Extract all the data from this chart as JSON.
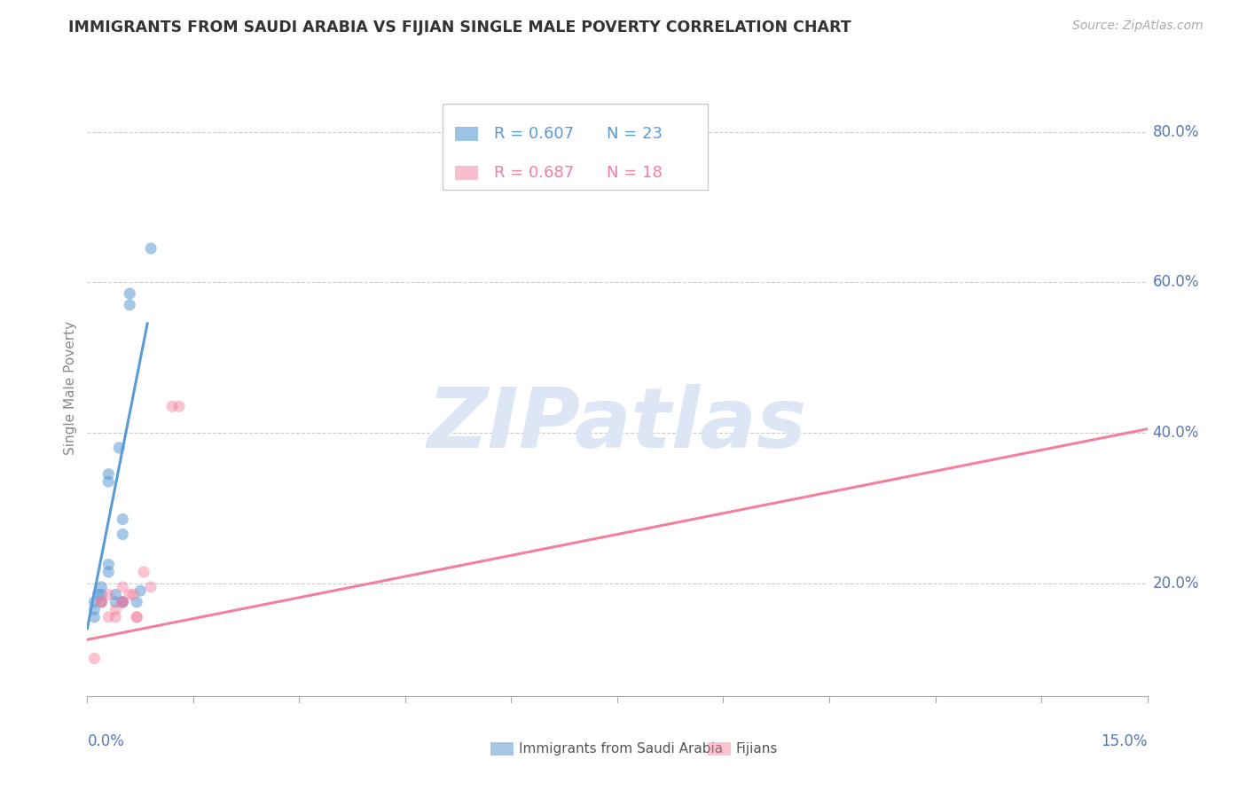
{
  "title": "IMMIGRANTS FROM SAUDI ARABIA VS FIJIAN SINGLE MALE POVERTY CORRELATION CHART",
  "source": "Source: ZipAtlas.com",
  "ylabel": "Single Male Poverty",
  "legend_blue_r": "R = 0.607",
  "legend_blue_n": "N = 23",
  "legend_pink_r": "R = 0.687",
  "legend_pink_n": "N = 18",
  "legend_blue_label": "Immigrants from Saudi Arabia",
  "legend_pink_label": "Fijians",
  "blue_scatter_x": [
    0.001,
    0.001,
    0.001,
    0.0015,
    0.002,
    0.002,
    0.002,
    0.003,
    0.003,
    0.003,
    0.003,
    0.004,
    0.004,
    0.0045,
    0.005,
    0.005,
    0.005,
    0.005,
    0.006,
    0.006,
    0.007,
    0.0075,
    0.009
  ],
  "blue_scatter_y": [
    0.155,
    0.165,
    0.175,
    0.185,
    0.175,
    0.185,
    0.195,
    0.215,
    0.225,
    0.335,
    0.345,
    0.175,
    0.185,
    0.38,
    0.175,
    0.175,
    0.265,
    0.285,
    0.585,
    0.57,
    0.175,
    0.19,
    0.645
  ],
  "pink_scatter_x": [
    0.001,
    0.002,
    0.002,
    0.003,
    0.003,
    0.004,
    0.004,
    0.005,
    0.005,
    0.005,
    0.006,
    0.0065,
    0.007,
    0.007,
    0.008,
    0.009,
    0.012,
    0.013
  ],
  "pink_scatter_y": [
    0.1,
    0.175,
    0.175,
    0.155,
    0.185,
    0.155,
    0.165,
    0.195,
    0.175,
    0.175,
    0.185,
    0.185,
    0.155,
    0.155,
    0.215,
    0.195,
    0.435,
    0.435
  ],
  "blue_line_x": [
    0.0,
    0.0085
  ],
  "blue_line_y": [
    0.14,
    0.545
  ],
  "pink_line_x": [
    0.0,
    0.15
  ],
  "pink_line_y": [
    0.125,
    0.405
  ],
  "xmin": 0.0,
  "xmax": 0.15,
  "ymin": 0.05,
  "ymax": 0.87,
  "ytick_vals": [
    0.2,
    0.4,
    0.6,
    0.8
  ],
  "ytick_labels": [
    "20.0%",
    "40.0%",
    "60.0%",
    "80.0%"
  ],
  "blue_color": "#5b9bd5",
  "pink_color": "#f47e9e",
  "background_color": "#ffffff",
  "grid_color": "#cccccc",
  "axis_label_color": "#5577bb",
  "title_color": "#333333",
  "ylabel_color": "#888888",
  "watermark_color": "#dce6f5",
  "watermark_text": "ZIPatlas"
}
